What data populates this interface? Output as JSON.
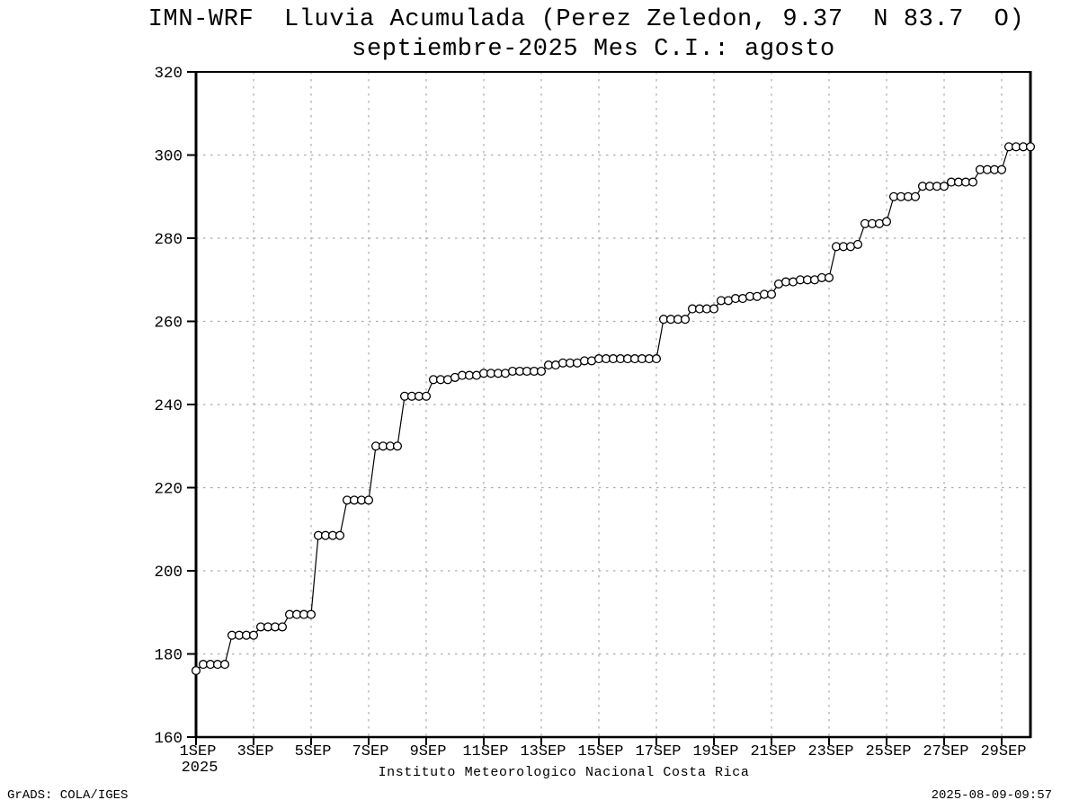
{
  "chart_data": {
    "type": "line",
    "title": "IMN-WRF  Lluvia Acumulada (Perez Zeledon, 9.37  N 83.7  O)",
    "subtitle": "septiembre-2025 Mes C.I.: agosto",
    "xlabel": "Instituto Meteorologico Nacional Costa Rica",
    "ylabel": "",
    "ylim": [
      160,
      320
    ],
    "y_ticks": [
      160,
      180,
      200,
      220,
      240,
      260,
      280,
      300,
      320
    ],
    "xlim_days": [
      1,
      30
    ],
    "x_ticks": [
      {
        "day": 1,
        "label": "1SEP",
        "sublabel": "2025"
      },
      {
        "day": 3,
        "label": "3SEP"
      },
      {
        "day": 5,
        "label": "5SEP"
      },
      {
        "day": 7,
        "label": "7SEP"
      },
      {
        "day": 9,
        "label": "9SEP"
      },
      {
        "day": 11,
        "label": "11SEP"
      },
      {
        "day": 13,
        "label": "13SEP"
      },
      {
        "day": 15,
        "label": "15SEP"
      },
      {
        "day": 17,
        "label": "17SEP"
      },
      {
        "day": 19,
        "label": "19SEP"
      },
      {
        "day": 21,
        "label": "21SEP"
      },
      {
        "day": 23,
        "label": "23SEP"
      },
      {
        "day": 25,
        "label": "25SEP"
      },
      {
        "day": 27,
        "label": "27SEP"
      },
      {
        "day": 29,
        "label": "29SEP"
      }
    ],
    "grid": true,
    "legend": "none",
    "marker": "open-circle",
    "series": [
      {
        "name": "lluvia-acumulada-mm",
        "start_day": 1,
        "step_days": 0.25,
        "values": [
          176,
          177.5,
          177.5,
          177.5,
          177.5,
          184.5,
          184.5,
          184.5,
          184.5,
          186.5,
          186.5,
          186.5,
          186.5,
          189.5,
          189.5,
          189.5,
          189.5,
          208.5,
          208.5,
          208.5,
          208.5,
          217,
          217,
          217,
          217,
          230,
          230,
          230,
          230,
          242,
          242,
          242,
          242,
          246,
          246,
          246,
          246.5,
          247,
          247,
          247,
          247.5,
          247.5,
          247.5,
          247.5,
          248,
          248,
          248,
          248,
          248,
          249.5,
          249.5,
          250,
          250,
          250,
          250.5,
          250.5,
          251,
          251,
          251,
          251,
          251,
          251,
          251,
          251,
          251,
          260.5,
          260.5,
          260.5,
          260.5,
          263,
          263,
          263,
          263,
          265,
          265,
          265.5,
          265.5,
          266,
          266,
          266.5,
          266.5,
          269,
          269.5,
          269.5,
          270,
          270,
          270,
          270.5,
          270.5,
          278,
          278,
          278,
          278.5,
          283.5,
          283.5,
          283.5,
          284,
          290,
          290,
          290,
          290,
          292.5,
          292.5,
          292.5,
          292.5,
          293.5,
          293.5,
          293.5,
          293.5,
          296.5,
          296.5,
          296.5,
          296.5,
          302,
          302,
          302,
          302
        ]
      }
    ],
    "colors": {
      "line": "#000000",
      "marker_stroke": "#000000",
      "marker_fill": "#ffffff",
      "grid": "#aaaaaa",
      "frame": "#000000",
      "background": "#ffffff",
      "text": "#000000"
    }
  },
  "footer": {
    "left": "GrADS: COLA/IGES",
    "right": "2025-08-09-09:57"
  }
}
